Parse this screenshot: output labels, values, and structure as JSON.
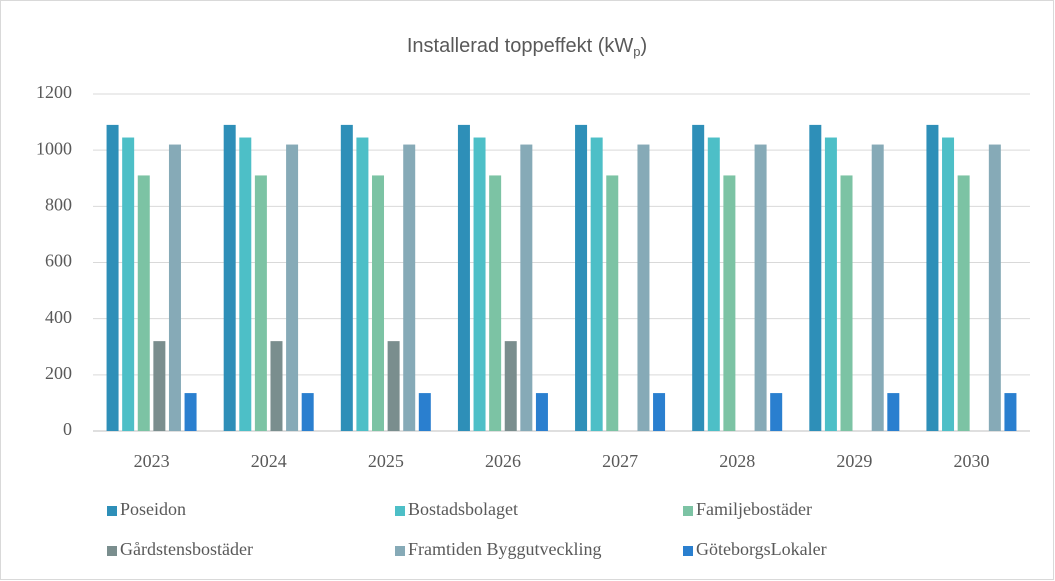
{
  "chart_data": {
    "type": "bar",
    "title": "Installerad toppeffekt (kW",
    "title_subscript": "p",
    "title_end": ")",
    "categories": [
      "2023",
      "2024",
      "2025",
      "2026",
      "2027",
      "2028",
      "2029",
      "2030"
    ],
    "series": [
      {
        "name": "Poseidon",
        "color": "#2e8fb8",
        "values": [
          1090,
          1090,
          1090,
          1090,
          1090,
          1090,
          1090,
          1090
        ]
      },
      {
        "name": "Bostadsbolaget",
        "color": "#4dbfc7",
        "values": [
          1045,
          1045,
          1045,
          1045,
          1045,
          1045,
          1045,
          1045
        ]
      },
      {
        "name": "Familjebostäder",
        "color": "#7cc3a4",
        "values": [
          910,
          910,
          910,
          910,
          910,
          910,
          910,
          910
        ]
      },
      {
        "name": "Gårdstensbostäder",
        "color": "#7a8e8e",
        "values": [
          320,
          320,
          320,
          320,
          null,
          null,
          null,
          null
        ]
      },
      {
        "name": "Framtiden Byggutveckling",
        "color": "#86aab7",
        "values": [
          1020,
          1020,
          1020,
          1020,
          1020,
          1020,
          1020,
          1020
        ]
      },
      {
        "name": "GöteborgsLokaler",
        "color": "#2a7fcf",
        "values": [
          135,
          135,
          135,
          135,
          135,
          135,
          135,
          135
        ]
      }
    ],
    "ylim": [
      0,
      1200
    ],
    "yticks": [
      0,
      200,
      400,
      600,
      800,
      1000,
      1200
    ],
    "grid": true,
    "legend": "bottom"
  }
}
